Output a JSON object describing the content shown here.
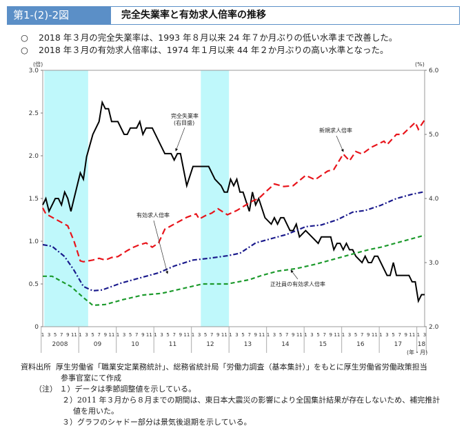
{
  "header": {
    "figure_number": "第1-(2)-2図",
    "title": "完全失業率と有効求人倍率の推移"
  },
  "bullets": [
    {
      "mark": "○",
      "text": "2018 年３月の完全失業率は、1993 年８月以来 24 年７か月ぶりの低い水準まで改善した。"
    },
    {
      "mark": "○",
      "text": "2018 年３月の有効求人倍率は、1974 年１月以来 44 年２か月ぶりの高い水準となった。"
    }
  ],
  "chart_data": {
    "type": "line",
    "x_start": "2008-01",
    "x_end": "2018-03",
    "x_unit": "month_index_from_2008-01",
    "left_axis": {
      "unit_label": "(倍)",
      "ylim": [
        0,
        3.0
      ],
      "ticks": [
        "0",
        "0.5",
        "1.0",
        "1.5",
        "2.0",
        "2.5",
        "3.0"
      ]
    },
    "right_axis": {
      "unit_label": "(%)",
      "ylim": [
        2.0,
        6.0
      ],
      "ticks": [
        "2.0",
        "3.0",
        "4.0",
        "5.0",
        "6.0"
      ]
    },
    "x_axis_label": "(年・月)",
    "month_tick_labels": [
      "1",
      "3",
      "5",
      "7",
      "9",
      "11"
    ],
    "year_labels": [
      "2008",
      "09",
      "10",
      "11",
      "12",
      "13",
      "14",
      "15",
      "16",
      "17",
      "18"
    ],
    "last_year_month_labels": [
      "1",
      "3"
    ],
    "shaded_periods": [
      {
        "from": 1,
        "to": 14
      },
      {
        "from": 51,
        "to": 59
      }
    ],
    "shaded_color": "#bff8fb",
    "series": [
      {
        "name": "完全失業率",
        "label": "完全失業率",
        "label2": "(右目盛)",
        "axis": "right",
        "color": "#000000",
        "style": "solid",
        "points": [
          [
            0,
            3.9
          ],
          [
            1,
            4.0
          ],
          [
            2,
            3.8
          ],
          [
            4,
            4.0
          ],
          [
            5,
            4.0
          ],
          [
            6,
            3.9
          ],
          [
            7,
            4.1
          ],
          [
            8,
            4.0
          ],
          [
            9,
            3.8
          ],
          [
            10,
            4.0
          ],
          [
            12,
            4.4
          ],
          [
            13,
            4.3
          ],
          [
            14,
            4.65
          ],
          [
            16,
            5.0
          ],
          [
            18,
            5.2
          ],
          [
            19,
            5.5
          ],
          [
            20,
            5.4
          ],
          [
            21,
            5.4
          ],
          [
            22,
            5.2
          ],
          [
            24,
            5.2
          ],
          [
            26,
            5.0
          ],
          [
            27,
            5.0
          ],
          [
            28,
            5.1
          ],
          [
            30,
            5.1
          ],
          [
            31,
            5.2
          ],
          [
            32,
            5.0
          ],
          [
            33,
            5.1
          ],
          [
            35,
            5.1
          ],
          [
            39,
            4.7
          ],
          [
            41,
            4.7
          ],
          [
            42,
            4.6
          ],
          [
            43,
            4.7
          ],
          [
            44,
            4.7
          ],
          [
            46,
            4.2
          ],
          [
            48,
            4.5
          ],
          [
            53,
            4.5
          ],
          [
            55,
            4.3
          ],
          [
            57,
            4.2
          ],
          [
            58,
            4.1
          ],
          [
            59,
            4.1
          ],
          [
            60,
            4.3
          ],
          [
            61,
            4.2
          ],
          [
            62,
            4.3
          ],
          [
            63,
            4.1
          ],
          [
            64,
            4.1
          ],
          [
            66,
            3.8
          ],
          [
            67,
            4.1
          ],
          [
            68,
            3.9
          ],
          [
            69,
            4.0
          ],
          [
            71,
            3.7
          ],
          [
            73,
            3.6
          ],
          [
            74,
            3.7
          ],
          [
            75,
            3.6
          ],
          [
            76,
            3.7
          ],
          [
            77,
            3.7
          ],
          [
            79,
            3.5
          ],
          [
            80,
            3.5
          ],
          [
            81,
            3.6
          ],
          [
            82,
            3.4
          ],
          [
            84,
            3.5
          ],
          [
            86,
            3.4
          ],
          [
            88,
            3.3
          ],
          [
            89,
            3.4
          ],
          [
            92,
            3.4
          ],
          [
            93,
            3.2
          ],
          [
            94,
            3.3
          ],
          [
            95,
            3.3
          ],
          [
            96,
            3.2
          ],
          [
            97,
            3.3
          ],
          [
            98,
            3.2
          ],
          [
            99,
            3.2
          ],
          [
            100,
            3.1
          ],
          [
            102,
            3.0
          ],
          [
            103,
            3.1
          ],
          [
            104,
            3.0
          ],
          [
            105,
            3.0
          ],
          [
            106,
            3.1
          ],
          [
            107,
            3.1
          ],
          [
            110,
            2.8
          ],
          [
            111,
            2.8
          ],
          [
            112,
            3.0
          ],
          [
            113,
            2.8
          ],
          [
            117,
            2.8
          ],
          [
            118,
            2.7
          ],
          [
            119,
            2.7
          ],
          [
            120,
            2.4
          ],
          [
            121,
            2.5
          ],
          [
            122,
            2.5
          ]
        ]
      },
      {
        "name": "新規求人倍率",
        "label": "新規求人倍率",
        "axis": "left",
        "color": "#e8141b",
        "style": "dash",
        "points": [
          [
            0,
            1.39
          ],
          [
            1,
            1.32
          ],
          [
            3,
            1.28
          ],
          [
            6,
            1.22
          ],
          [
            8,
            1.18
          ],
          [
            10,
            1.0
          ],
          [
            12,
            0.77
          ],
          [
            13,
            0.76
          ],
          [
            16,
            0.78
          ],
          [
            18,
            0.8
          ],
          [
            20,
            0.78
          ],
          [
            22,
            0.81
          ],
          [
            24,
            0.82
          ],
          [
            27,
            0.89
          ],
          [
            29,
            0.93
          ],
          [
            31,
            0.96
          ],
          [
            33,
            0.98
          ],
          [
            35,
            0.93
          ],
          [
            37,
            0.98
          ],
          [
            39,
            1.14
          ],
          [
            43,
            1.22
          ],
          [
            46,
            1.28
          ],
          [
            49,
            1.32
          ],
          [
            50,
            1.26
          ],
          [
            52,
            1.3
          ],
          [
            54,
            1.33
          ],
          [
            56,
            1.38
          ],
          [
            59,
            1.31
          ],
          [
            62,
            1.36
          ],
          [
            67,
            1.47
          ],
          [
            69,
            1.5
          ],
          [
            71,
            1.57
          ],
          [
            74,
            1.67
          ],
          [
            77,
            1.64
          ],
          [
            80,
            1.65
          ],
          [
            84,
            1.77
          ],
          [
            87,
            1.72
          ],
          [
            91,
            1.82
          ],
          [
            93,
            1.84
          ],
          [
            96,
            2.02
          ],
          [
            98,
            1.94
          ],
          [
            100,
            2.05
          ],
          [
            102,
            2.02
          ],
          [
            105,
            2.1
          ],
          [
            109,
            2.17
          ],
          [
            110,
            2.13
          ],
          [
            113,
            2.25
          ],
          [
            115,
            2.25
          ],
          [
            119,
            2.39
          ],
          [
            120,
            2.31
          ],
          [
            122,
            2.42
          ]
        ]
      },
      {
        "name": "有効求人倍率",
        "label": "有効求人倍率",
        "axis": "left",
        "color": "#1a1a8c",
        "style": "dashdot",
        "points": [
          [
            0,
            0.96
          ],
          [
            3,
            0.94
          ],
          [
            7,
            0.82
          ],
          [
            10,
            0.66
          ],
          [
            13,
            0.47
          ],
          [
            16,
            0.42
          ],
          [
            19,
            0.43
          ],
          [
            25,
            0.51
          ],
          [
            31,
            0.57
          ],
          [
            37,
            0.63
          ],
          [
            42,
            0.71
          ],
          [
            48,
            0.78
          ],
          [
            53,
            0.8
          ],
          [
            59,
            0.83
          ],
          [
            63,
            0.86
          ],
          [
            68,
            0.98
          ],
          [
            74,
            1.04
          ],
          [
            78,
            1.08
          ],
          [
            84,
            1.17
          ],
          [
            89,
            1.19
          ],
          [
            94,
            1.25
          ],
          [
            99,
            1.34
          ],
          [
            103,
            1.36
          ],
          [
            108,
            1.42
          ],
          [
            113,
            1.5
          ],
          [
            118,
            1.55
          ],
          [
            122,
            1.58
          ]
        ]
      },
      {
        "name": "正社員の有効求人倍率",
        "label": "正社員の有効求人倍率",
        "axis": "left",
        "color": "#1c9a2c",
        "style": "shortdash",
        "points": [
          [
            0,
            0.59
          ],
          [
            3,
            0.59
          ],
          [
            9,
            0.47
          ],
          [
            13,
            0.34
          ],
          [
            16,
            0.25
          ],
          [
            20,
            0.26
          ],
          [
            26,
            0.32
          ],
          [
            32,
            0.37
          ],
          [
            38,
            0.39
          ],
          [
            44,
            0.44
          ],
          [
            51,
            0.5
          ],
          [
            55,
            0.5
          ],
          [
            59,
            0.5
          ],
          [
            66,
            0.55
          ],
          [
            70,
            0.6
          ],
          [
            75,
            0.65
          ],
          [
            81,
            0.68
          ],
          [
            87,
            0.73
          ],
          [
            92,
            0.78
          ],
          [
            98,
            0.84
          ],
          [
            104,
            0.9
          ],
          [
            108,
            0.93
          ],
          [
            113,
            0.98
          ],
          [
            118,
            1.03
          ],
          [
            122,
            1.07
          ]
        ]
      }
    ]
  },
  "notes": {
    "source_label": "資料出所",
    "source_text": "厚生労働省「職業安定業務統計」、総務省統計局「労働力調査（基本集計）」をもとに厚生労働省労働政策担当",
    "source_text2": "参事官室にて作成",
    "note_label": "（注）",
    "items": [
      "１）データは季節調整値を示している。",
      "２）2011 年３月から８月までの期間は、東日本大震災の影響により全国集計結果が存在しないため、補完推計",
      "値を用いた。",
      "３）グラフのシャドー部分は景気後退期を示している。"
    ]
  }
}
